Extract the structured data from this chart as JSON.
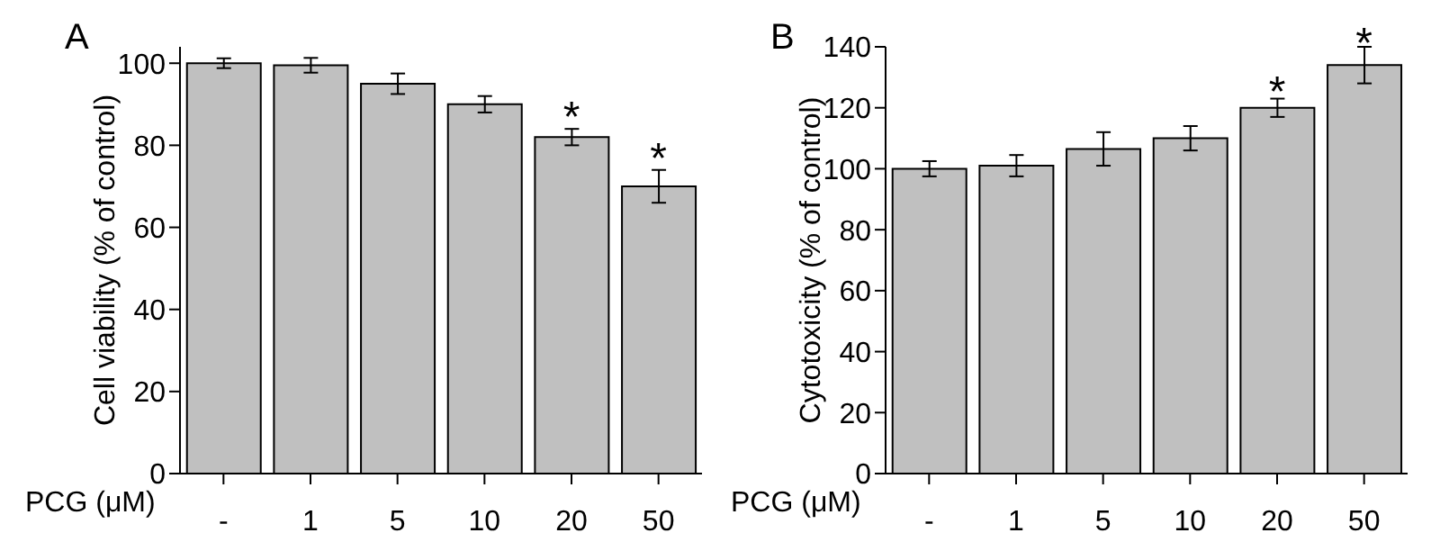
{
  "chart_data": [
    {
      "type": "bar",
      "title": "A",
      "xlabel": "PCG (μM)",
      "ylabel": "Cell viability (% of control)",
      "categories": [
        "-",
        "1",
        "5",
        "10",
        "20",
        "50"
      ],
      "values": [
        100,
        99.5,
        95,
        90,
        82,
        70
      ],
      "errors": [
        1.2,
        1.8,
        2.5,
        2,
        2,
        4
      ],
      "color": "#c0c0c0",
      "ylim": [
        0,
        104
      ],
      "yticks": [
        0,
        20,
        40,
        60,
        80,
        100
      ],
      "annotations": [
        {
          "text": "*",
          "x": "20",
          "y": 86
        },
        {
          "text": "*",
          "x": "50",
          "y": 76
        }
      ]
    },
    {
      "type": "bar",
      "title": "B",
      "xlabel": "PCG (μM)",
      "ylabel": "Cytotoxicity (% of control)",
      "categories": [
        "-",
        "1",
        "5",
        "10",
        "20",
        "50"
      ],
      "values": [
        100,
        101,
        106.5,
        110,
        120,
        134
      ],
      "errors": [
        2.5,
        3.5,
        5.5,
        4,
        3,
        6
      ],
      "color": "#c0c0c0",
      "ylim": [
        0,
        140
      ],
      "yticks": [
        0,
        20,
        40,
        60,
        80,
        100,
        120,
        140
      ],
      "annotations": [
        {
          "text": "*",
          "x": "20",
          "y": 124
        },
        {
          "text": "*",
          "x": "50",
          "y": 140
        }
      ]
    }
  ]
}
